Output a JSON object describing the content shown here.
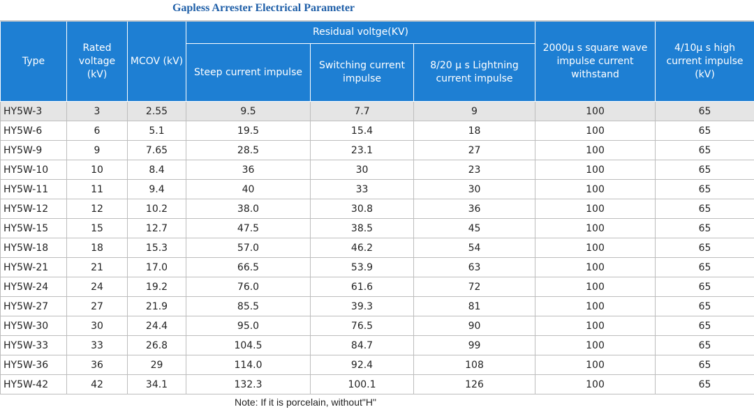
{
  "title": "Gapless Arrester Electrical Parameter",
  "header": {
    "type": "Type",
    "rated_voltage": "Rated voltage (kV)",
    "mcov": "MCOV (kV)",
    "residual_group": "Residual voltge(KV)",
    "steep": "Steep current impulse",
    "switching": "Switching current impulse",
    "lightning": "8/20 μ s Lightning current impulse",
    "square_wave": "2000μ s square wave impulse current withstand",
    "high_current": "4/10μ s high current impulse (kV)"
  },
  "rows": [
    [
      "HY5W-3",
      "3",
      "2.55",
      "9.5",
      "7.7",
      "9",
      "100",
      "65"
    ],
    [
      "HY5W-6",
      "6",
      "5.1",
      "19.5",
      "15.4",
      "18",
      "100",
      "65"
    ],
    [
      "HY5W-9",
      "9",
      "7.65",
      "28.5",
      "23.1",
      "27",
      "100",
      "65"
    ],
    [
      "HY5W-10",
      "10",
      "8.4",
      "36",
      "30",
      "23",
      "100",
      "65"
    ],
    [
      "HY5W-11",
      "11",
      "9.4",
      "40",
      "33",
      "30",
      "100",
      "65"
    ],
    [
      "HY5W-12",
      "12",
      "10.2",
      "38.0",
      "30.8",
      "36",
      "100",
      "65"
    ],
    [
      "HY5W-15",
      "15",
      "12.7",
      "47.5",
      "38.5",
      "45",
      "100",
      "65"
    ],
    [
      "HY5W-18",
      "18",
      "15.3",
      "57.0",
      "46.2",
      "54",
      "100",
      "65"
    ],
    [
      "HY5W-21",
      "21",
      "17.0",
      "66.5",
      "53.9",
      "63",
      "100",
      "65"
    ],
    [
      "HY5W-24",
      "24",
      "19.2",
      "76.0",
      "61.6",
      "72",
      "100",
      "65"
    ],
    [
      "HY5W-27",
      "27",
      "21.9",
      "85.5",
      "39.3",
      "81",
      "100",
      "65"
    ],
    [
      "HY5W-30",
      "30",
      "24.4",
      "95.0",
      "76.5",
      "90",
      "100",
      "65"
    ],
    [
      "HY5W-33",
      "33",
      "26.8",
      "104.5",
      "84.7",
      "99",
      "100",
      "65"
    ],
    [
      "HY5W-36",
      "36",
      "29",
      "114.0",
      "92.4",
      "108",
      "100",
      "65"
    ],
    [
      "HY5W-42",
      "42",
      "34.1",
      "132.3",
      "100.1",
      "126",
      "100",
      "65"
    ]
  ],
  "note": "Note: If it is porcelain, without\"H\"",
  "colors": {
    "header_bg": "#1e7fd3",
    "title": "#1f5fa8",
    "highlight_row": "#e5e5e5"
  }
}
